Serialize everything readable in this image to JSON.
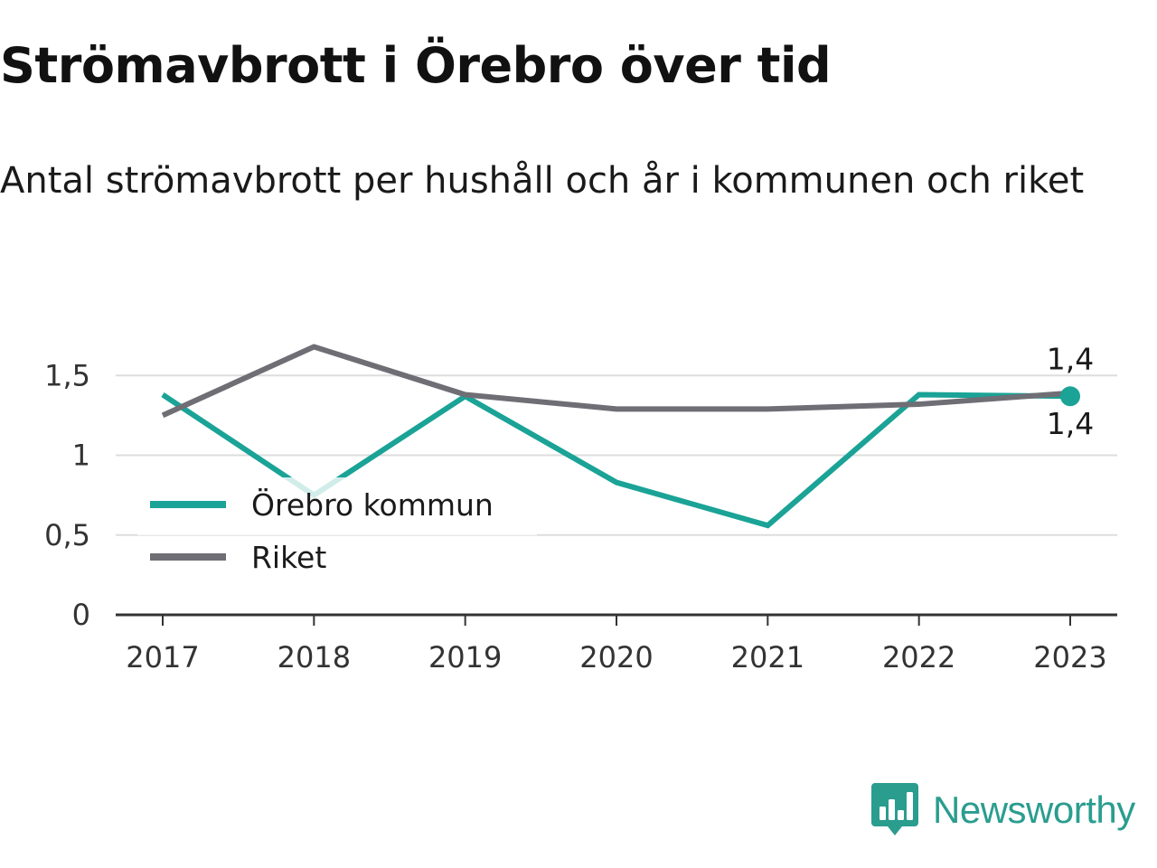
{
  "header": {
    "title": "Strömavbrott i Örebro över tid",
    "subtitle": "Antal strömavbrott per hushåll och år i kommunen och riket"
  },
  "brand": {
    "name": "Newsworthy",
    "icon": "bar-chart-speech-bubble-icon",
    "color": "#2a9d8f"
  },
  "chart_data": {
    "type": "line",
    "title": "Strömavbrott i Örebro över tid",
    "subtitle": "Antal strömavbrott per hushåll och år i kommunen och riket",
    "xlabel": "",
    "ylabel": "",
    "categories": [
      "2017",
      "2018",
      "2019",
      "2020",
      "2021",
      "2022",
      "2023"
    ],
    "ylim": [
      0,
      1.7
    ],
    "yticks": [
      0,
      0.5,
      1,
      1.5
    ],
    "ytick_labels": [
      "0",
      "0,5",
      "1",
      "1,5"
    ],
    "grid": true,
    "legend_position": "left",
    "series": [
      {
        "name": "Örebro kommun",
        "color": "#1aa396",
        "values": [
          1.38,
          0.75,
          1.37,
          0.83,
          0.56,
          1.38,
          1.37
        ],
        "end_label": "1,4",
        "end_label_position": "below",
        "end_marker": true
      },
      {
        "name": "Riket",
        "color": "#6f6e75",
        "values": [
          1.25,
          1.68,
          1.38,
          1.29,
          1.29,
          1.32,
          1.39
        ],
        "end_label": "1,4",
        "end_label_position": "above",
        "end_marker": false
      }
    ]
  }
}
